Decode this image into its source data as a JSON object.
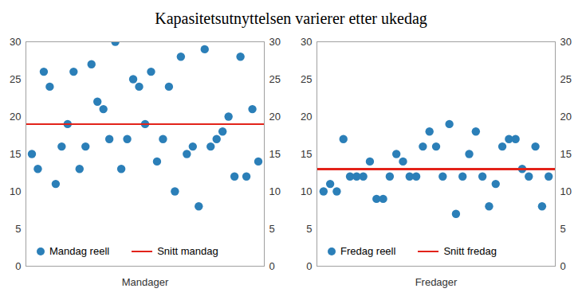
{
  "title": "Kapasitetsutnyttelsen varierer etter ukedag",
  "chart_data": [
    {
      "type": "scatter",
      "x_label": "Mandager",
      "x": [
        1,
        2,
        3,
        4,
        5,
        6,
        7,
        8,
        9,
        10,
        11,
        12,
        13,
        14,
        15,
        16,
        17,
        18,
        19,
        20,
        21,
        22,
        23,
        24,
        25,
        26,
        27,
        28,
        29,
        30,
        31,
        32,
        33,
        34,
        35,
        36,
        37,
        38,
        39
      ],
      "xlim": [
        0,
        40
      ],
      "ylim": [
        0,
        30
      ],
      "yticks": [
        0,
        5,
        10,
        15,
        20,
        25,
        30
      ],
      "y2lim": [
        0,
        30
      ],
      "y2ticks": [
        0,
        5,
        10,
        15,
        20,
        25,
        30
      ],
      "tick_labels": "y",
      "legend": "bottom",
      "series": [
        {
          "name": "Mandag reell",
          "type": "scatter",
          "marker": "circle",
          "color": "#2b7fb8",
          "values": [
            15,
            13,
            26,
            24,
            11,
            16,
            19,
            26,
            13,
            16,
            27,
            22,
            21,
            17,
            30,
            13,
            17,
            25,
            24,
            19,
            26,
            14,
            17,
            24,
            10,
            28,
            15,
            16,
            8,
            29,
            16,
            17,
            18,
            20,
            12,
            28,
            12,
            21,
            14
          ]
        },
        {
          "name": "Snitt mandag",
          "type": "line",
          "line_style": "solid",
          "color": "#e2231a",
          "values": [
            19,
            19,
            19,
            19,
            19,
            19,
            19,
            19,
            19,
            19,
            19,
            19,
            19,
            19,
            19,
            19,
            19,
            19,
            19,
            19,
            19,
            19,
            19,
            19,
            19,
            19,
            19,
            19,
            19,
            19,
            19,
            19,
            19,
            19,
            19,
            19,
            19,
            19,
            19
          ]
        }
      ]
    },
    {
      "type": "scatter",
      "x_label": "Fredager",
      "x": [
        1,
        2,
        3,
        4,
        5,
        6,
        7,
        8,
        9,
        10,
        11,
        12,
        13,
        14,
        15,
        16,
        17,
        18,
        19,
        20,
        21,
        22,
        23,
        24,
        25,
        26,
        27,
        28,
        29,
        30,
        31,
        32,
        33,
        34,
        35
      ],
      "xlim": [
        0,
        36
      ],
      "ylim": [
        0,
        30
      ],
      "yticks": [
        0,
        5,
        10,
        15,
        20,
        25,
        30
      ],
      "y2lim": [
        0,
        30
      ],
      "y2ticks": [
        0,
        5,
        10,
        15,
        20,
        25,
        30
      ],
      "tick_labels": "y",
      "legend": "bottom",
      "series": [
        {
          "name": "Fredag reell",
          "type": "scatter",
          "marker": "circle",
          "color": "#2b7fb8",
          "values": [
            10,
            11,
            10,
            17,
            12,
            12,
            12,
            14,
            9,
            9,
            12,
            15,
            14,
            12,
            12,
            16,
            18,
            16,
            12,
            19,
            7,
            12,
            15,
            18,
            12,
            8,
            11,
            16,
            17,
            17,
            13,
            12,
            16,
            8,
            12
          ]
        },
        {
          "name": "Snitt fredag",
          "type": "line",
          "line_style": "solid",
          "color": "#e2231a",
          "values": [
            13,
            13,
            13,
            13,
            13,
            13,
            13,
            13,
            13,
            13,
            13,
            13,
            13,
            13,
            13,
            13,
            13,
            13,
            13,
            13,
            13,
            13,
            13,
            13,
            13,
            13,
            13,
            13,
            13,
            13,
            13,
            13,
            13,
            13,
            13
          ]
        }
      ]
    }
  ]
}
